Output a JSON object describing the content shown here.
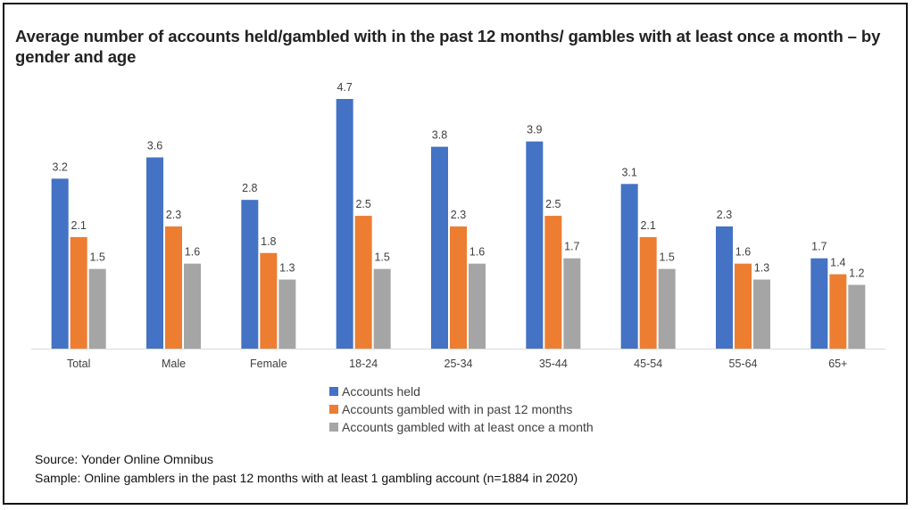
{
  "title": "Average number of accounts held/gambled with in the past 12 months/ gambles with at least once a month – by gender and age",
  "footer": {
    "source": "Source: Yonder Online Omnibus",
    "sample": "Sample: Online gamblers in the past 12 months with at least 1 gambling account (n=1884 in 2020)"
  },
  "chart_data": {
    "type": "bar",
    "title": "Average number of accounts held/gambled with in the past 12 months/ gambles with at least once a month – by gender and age",
    "categories": [
      "Total",
      "Male",
      "Female",
      "18-24",
      "25-34",
      "35-44",
      "45-54",
      "55-64",
      "65+"
    ],
    "series": [
      {
        "name": "Accounts held",
        "color": "#4472C4",
        "values": [
          3.2,
          3.6,
          2.8,
          4.7,
          3.8,
          3.9,
          3.1,
          2.3,
          1.7
        ]
      },
      {
        "name": "Accounts gambled with in past 12 months",
        "color": "#ED7D31",
        "values": [
          2.1,
          2.3,
          1.8,
          2.5,
          2.3,
          2.5,
          2.1,
          1.6,
          1.4
        ]
      },
      {
        "name": "Accounts gambled with at least once a month",
        "color": "#A5A5A5",
        "values": [
          1.5,
          1.6,
          1.3,
          1.5,
          1.6,
          1.7,
          1.5,
          1.3,
          1.2
        ]
      }
    ],
    "ylim": [
      0,
      4.7
    ],
    "grid": false,
    "legend_position": "bottom"
  }
}
